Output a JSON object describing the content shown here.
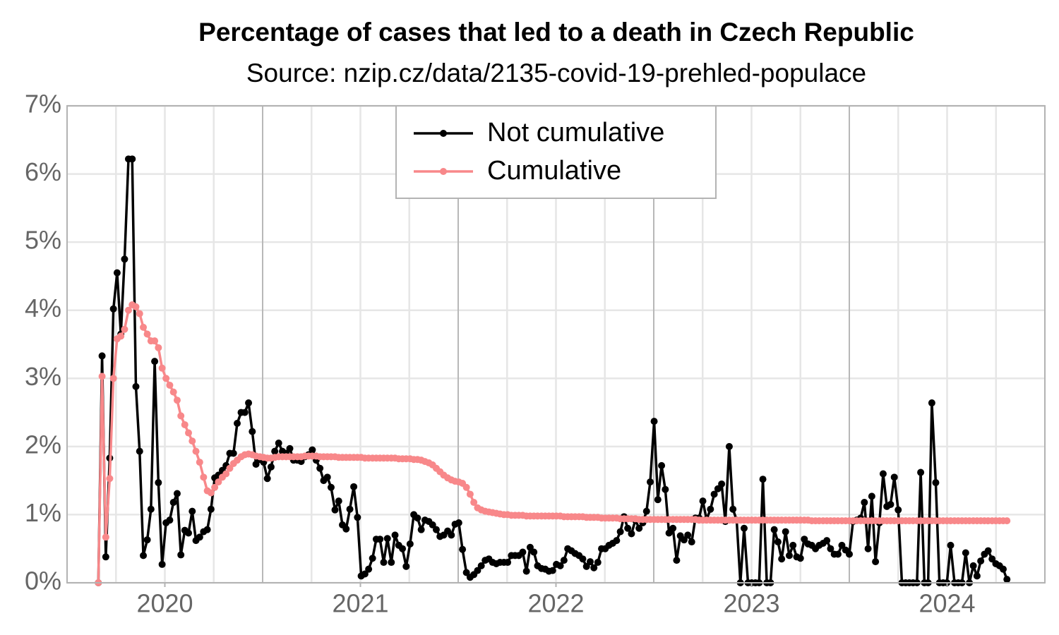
{
  "chart_data": {
    "type": "line",
    "title": "Percentage of cases that led to a death in Czech Republic",
    "subtitle": "Source: nzip.cz/data/2135-covid-19-prehled-populace",
    "x": [
      2020.16,
      2020.179,
      2020.198,
      2020.218,
      2020.237,
      2020.256,
      2020.275,
      2020.294,
      2020.314,
      2020.333,
      2020.352,
      2020.371,
      2020.39,
      2020.41,
      2020.429,
      2020.448,
      2020.467,
      2020.486,
      2020.506,
      2020.525,
      2020.544,
      2020.563,
      2020.582,
      2020.602,
      2020.621,
      2020.64,
      2020.659,
      2020.678,
      2020.698,
      2020.717,
      2020.736,
      2020.755,
      2020.774,
      2020.794,
      2020.813,
      2020.832,
      2020.851,
      2020.87,
      2020.89,
      2020.909,
      2020.928,
      2020.947,
      2020.966,
      2020.986,
      2021.005,
      2021.024,
      2021.043,
      2021.062,
      2021.082,
      2021.101,
      2021.12,
      2021.139,
      2021.158,
      2021.178,
      2021.197,
      2021.216,
      2021.235,
      2021.254,
      2021.274,
      2021.293,
      2021.312,
      2021.331,
      2021.35,
      2021.37,
      2021.389,
      2021.408,
      2021.427,
      2021.446,
      2021.466,
      2021.485,
      2021.504,
      2021.523,
      2021.542,
      2021.562,
      2021.581,
      2021.6,
      2021.619,
      2021.638,
      2021.658,
      2021.677,
      2021.696,
      2021.715,
      2021.734,
      2021.754,
      2021.773,
      2021.792,
      2021.811,
      2021.83,
      2021.85,
      2021.869,
      2021.888,
      2021.907,
      2021.926,
      2021.946,
      2021.965,
      2021.984,
      2022.003,
      2022.022,
      2022.042,
      2022.061,
      2022.08,
      2022.099,
      2022.118,
      2022.138,
      2022.157,
      2022.176,
      2022.195,
      2022.214,
      2022.234,
      2022.253,
      2022.272,
      2022.291,
      2022.31,
      2022.33,
      2022.349,
      2022.368,
      2022.387,
      2022.406,
      2022.426,
      2022.445,
      2022.464,
      2022.483,
      2022.502,
      2022.522,
      2022.541,
      2022.56,
      2022.579,
      2022.598,
      2022.618,
      2022.637,
      2022.656,
      2022.675,
      2022.694,
      2022.714,
      2022.733,
      2022.752,
      2022.771,
      2022.79,
      2022.81,
      2022.829,
      2022.848,
      2022.867,
      2022.886,
      2022.906,
      2022.925,
      2022.944,
      2022.963,
      2022.982,
      2023.002,
      2023.021,
      2023.04,
      2023.059,
      2023.078,
      2023.098,
      2023.117,
      2023.136,
      2023.155,
      2023.174,
      2023.194,
      2023.213,
      2023.232,
      2023.251,
      2023.27,
      2023.29,
      2023.309,
      2023.328,
      2023.347,
      2023.366,
      2023.386,
      2023.405,
      2023.424,
      2023.443,
      2023.462,
      2023.482,
      2023.501,
      2023.52,
      2023.539,
      2023.558,
      2023.578,
      2023.597,
      2023.616,
      2023.635,
      2023.654,
      2023.674,
      2023.693,
      2023.712,
      2023.731,
      2023.75,
      2023.77,
      2023.789,
      2023.808,
      2023.827,
      2023.846,
      2023.866,
      2023.885,
      2023.904,
      2023.923,
      2023.942,
      2023.962,
      2023.981,
      2024.0,
      2024.019,
      2024.038,
      2024.058,
      2024.077,
      2024.096,
      2024.115,
      2024.134,
      2024.154,
      2024.173,
      2024.192,
      2024.211,
      2024.23,
      2024.25,
      2024.269,
      2024.288,
      2024.307,
      2024.326,
      2024.346,
      2024.365,
      2024.384,
      2024.403,
      2024.422,
      2024.442,
      2024.461,
      2024.48,
      2024.499,
      2024.518,
      2024.538,
      2024.557,
      2024.576,
      2024.595,
      2024.614,
      2024.634,
      2024.653,
      2024.672,
      2024.691,
      2024.71,
      2024.73,
      2024.749,
      2024.768,
      2024.787,
      2024.806
    ],
    "series": [
      {
        "name": "Not cumulative",
        "color": "#000000",
        "values": [
          0,
          3.33,
          0.38,
          1.83,
          4.02,
          4.55,
          3.65,
          4.75,
          6.22,
          6.22,
          2.88,
          1.93,
          0.4,
          0.63,
          1.08,
          3.25,
          1.47,
          0.27,
          0.88,
          0.92,
          1.18,
          1.31,
          0.41,
          0.77,
          0.73,
          1.05,
          0.62,
          0.67,
          0.75,
          0.78,
          1.08,
          1.54,
          1.58,
          1.65,
          1.72,
          1.9,
          1.9,
          2.34,
          2.5,
          2.5,
          2.64,
          2.22,
          1.74,
          1.81,
          1.77,
          1.53,
          1.7,
          1.93,
          2.05,
          1.93,
          1.9,
          1.97,
          1.8,
          1.8,
          1.78,
          1.85,
          1.88,
          1.95,
          1.8,
          1.68,
          1.5,
          1.55,
          1.4,
          1.07,
          1.2,
          0.85,
          0.79,
          1.08,
          1.41,
          0.96,
          0.1,
          0.13,
          0.2,
          0.36,
          0.64,
          0.64,
          0.3,
          0.65,
          0.3,
          0.7,
          0.55,
          0.5,
          0.24,
          0.57,
          1.0,
          0.95,
          0.78,
          0.92,
          0.9,
          0.85,
          0.78,
          0.68,
          0.7,
          0.76,
          0.7,
          0.86,
          0.88,
          0.49,
          0.15,
          0.08,
          0.12,
          0.18,
          0.25,
          0.33,
          0.35,
          0.3,
          0.28,
          0.3,
          0.3,
          0.3,
          0.4,
          0.4,
          0.4,
          0.45,
          0.17,
          0.52,
          0.45,
          0.25,
          0.21,
          0.2,
          0.17,
          0.18,
          0.27,
          0.25,
          0.33,
          0.5,
          0.47,
          0.43,
          0.4,
          0.35,
          0.24,
          0.31,
          0.22,
          0.3,
          0.5,
          0.5,
          0.55,
          0.58,
          0.62,
          0.75,
          0.97,
          0.8,
          0.72,
          0.92,
          0.8,
          0.88,
          1.05,
          1.48,
          2.37,
          1.22,
          1.72,
          1.37,
          0.73,
          0.8,
          0.33,
          0.69,
          0.63,
          0.7,
          0.6,
          0.95,
          0.95,
          1.2,
          0.93,
          1.08,
          1.3,
          1.38,
          1.45,
          0.9,
          2.0,
          1.08,
          0.92,
          0,
          0.8,
          0,
          0,
          0,
          0,
          1.52,
          0,
          0,
          0.78,
          0.6,
          0.35,
          0.75,
          0.4,
          0.55,
          0.38,
          0.36,
          0.64,
          0.57,
          0.55,
          0.5,
          0.55,
          0.58,
          0.62,
          0.5,
          0.42,
          0.42,
          0.55,
          0.48,
          0.42,
          0.9,
          0.92,
          0.95,
          1.18,
          0.5,
          1.27,
          0.31,
          0.88,
          1.6,
          1.12,
          1.15,
          1.55,
          1.07,
          0,
          0,
          0,
          0,
          0,
          1.62,
          0,
          0,
          2.64,
          1.47,
          0,
          0,
          0,
          0.55,
          0,
          0,
          0,
          0.44,
          0,
          0.25,
          0.1,
          0.32,
          0.42,
          0.47,
          0.35,
          0.28,
          0.25,
          0.2,
          0.05
        ]
      },
      {
        "name": "Cumulative",
        "color": "#f8888a",
        "values": [
          0,
          3.03,
          0.67,
          1.53,
          3.0,
          3.58,
          3.62,
          3.72,
          4.0,
          4.08,
          4.05,
          3.95,
          3.75,
          3.65,
          3.55,
          3.55,
          3.45,
          3.15,
          3.0,
          2.9,
          2.8,
          2.68,
          2.45,
          2.32,
          2.2,
          2.08,
          1.93,
          1.77,
          1.55,
          1.35,
          1.32,
          1.4,
          1.48,
          1.55,
          1.6,
          1.68,
          1.75,
          1.8,
          1.85,
          1.88,
          1.89,
          1.88,
          1.86,
          1.85,
          1.84,
          1.83,
          1.83,
          1.84,
          1.85,
          1.85,
          1.85,
          1.85,
          1.85,
          1.85,
          1.85,
          1.86,
          1.86,
          1.86,
          1.86,
          1.85,
          1.85,
          1.85,
          1.85,
          1.85,
          1.84,
          1.84,
          1.84,
          1.84,
          1.84,
          1.84,
          1.84,
          1.83,
          1.83,
          1.83,
          1.83,
          1.83,
          1.83,
          1.83,
          1.83,
          1.83,
          1.82,
          1.82,
          1.82,
          1.82,
          1.81,
          1.81,
          1.8,
          1.78,
          1.76,
          1.73,
          1.68,
          1.63,
          1.58,
          1.54,
          1.51,
          1.49,
          1.48,
          1.46,
          1.4,
          1.3,
          1.18,
          1.1,
          1.07,
          1.05,
          1.04,
          1.03,
          1.02,
          1.01,
          1.0,
          1.0,
          0.99,
          0.99,
          0.99,
          0.99,
          0.98,
          0.98,
          0.98,
          0.98,
          0.98,
          0.98,
          0.98,
          0.98,
          0.98,
          0.98,
          0.97,
          0.97,
          0.97,
          0.97,
          0.97,
          0.97,
          0.96,
          0.96,
          0.96,
          0.96,
          0.95,
          0.95,
          0.95,
          0.95,
          0.95,
          0.94,
          0.94,
          0.94,
          0.94,
          0.94,
          0.93,
          0.93,
          0.93,
          0.93,
          0.93,
          0.93,
          0.93,
          0.93,
          0.93,
          0.93,
          0.93,
          0.93,
          0.93,
          0.93,
          0.93,
          0.93,
          0.92,
          0.92,
          0.92,
          0.92,
          0.92,
          0.92,
          0.92,
          0.92,
          0.92,
          0.92,
          0.92,
          0.92,
          0.92,
          0.92,
          0.92,
          0.92,
          0.92,
          0.92,
          0.92,
          0.92,
          0.92,
          0.92,
          0.92,
          0.92,
          0.92,
          0.92,
          0.92,
          0.92,
          0.92,
          0.92,
          0.91,
          0.91,
          0.91,
          0.91,
          0.91,
          0.91,
          0.91,
          0.91,
          0.91,
          0.91,
          0.91,
          0.91,
          0.91,
          0.91,
          0.91,
          0.91,
          0.91,
          0.91,
          0.91,
          0.91,
          0.91,
          0.91,
          0.91,
          0.91,
          0.91,
          0.91,
          0.91,
          0.91,
          0.91,
          0.91,
          0.91,
          0.91,
          0.91,
          0.91,
          0.91,
          0.91,
          0.91,
          0.91,
          0.91,
          0.91,
          0.91,
          0.91,
          0.91,
          0.91,
          0.91,
          0.91,
          0.91,
          0.91,
          0.91,
          0.91,
          0.91,
          0.91,
          0.91
        ]
      }
    ],
    "xlim": [
      2020,
      2025
    ],
    "xticks": [
      {
        "value": 2020.5,
        "label": "2020"
      },
      {
        "value": 2021.5,
        "label": "2021"
      },
      {
        "value": 2022.5,
        "label": "2022"
      },
      {
        "value": 2023.5,
        "label": "2023"
      },
      {
        "value": 2024.5,
        "label": "2024"
      }
    ],
    "xgrid_major": [
      2021,
      2022,
      2023,
      2024
    ],
    "xgrid_minor": [
      2020.25,
      2020.5,
      2020.75,
      2021.25,
      2021.5,
      2021.75,
      2022.25,
      2022.5,
      2022.75,
      2023.25,
      2023.5,
      2023.75,
      2024.25,
      2024.5,
      2024.75
    ],
    "ylim": [
      0,
      7
    ],
    "yticks": [
      {
        "value": 0,
        "label": "0%"
      },
      {
        "value": 1,
        "label": "1%"
      },
      {
        "value": 2,
        "label": "2%"
      },
      {
        "value": 3,
        "label": "3%"
      },
      {
        "value": 4,
        "label": "4%"
      },
      {
        "value": 5,
        "label": "5%"
      },
      {
        "value": 6,
        "label": "6%"
      },
      {
        "value": 7,
        "label": "7%"
      }
    ],
    "grid": true,
    "legend": "top"
  }
}
